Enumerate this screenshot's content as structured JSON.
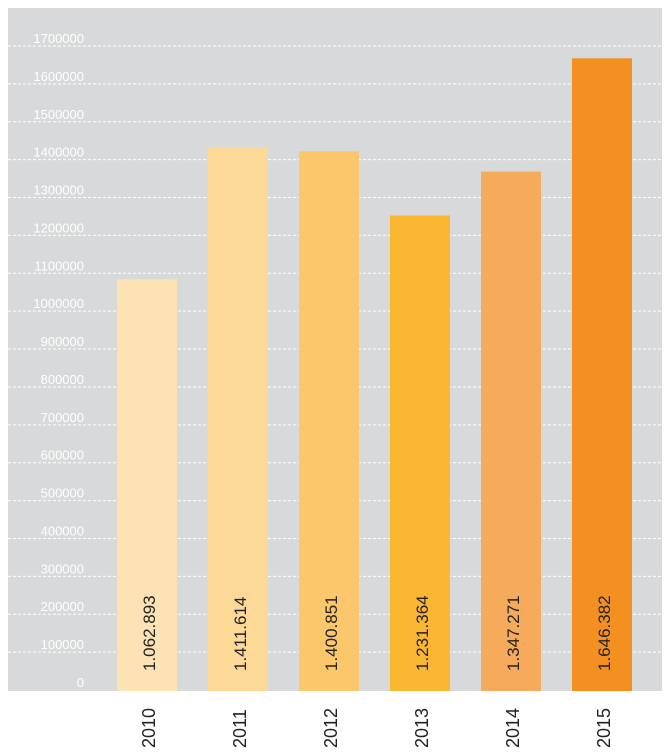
{
  "chart_data": {
    "type": "bar",
    "categories": [
      "2010",
      "2011",
      "2012",
      "2013",
      "2014",
      "2015"
    ],
    "values": [
      1062893,
      1411614,
      1400851,
      1231364,
      1347271,
      1646382
    ],
    "value_labels": [
      "1.062.893",
      "1.411.614",
      "1.400.851",
      "1.231.364",
      "1.347.271",
      "1.646.382"
    ],
    "yticks": [
      "0",
      "100000",
      "200000",
      "300000",
      "400000",
      "500000",
      "600000",
      "700000",
      "800000",
      "900000",
      "1000000",
      "1100000",
      "1200000",
      "1300000",
      "1400000",
      "1500000",
      "1600000",
      "1700000"
    ],
    "ylim": [
      0,
      1700000
    ],
    "grid": true,
    "title": "",
    "xlabel": "",
    "ylabel": "",
    "colors": {
      "plot_background": "#d8d9da",
      "gridline": "#ffffff",
      "tick_label": "#ffffff",
      "bars": [
        "#fde3b3",
        "#fdd897",
        "#fcc76a",
        "#fbb732",
        "#f6aa5b",
        "#f3901f"
      ]
    }
  }
}
